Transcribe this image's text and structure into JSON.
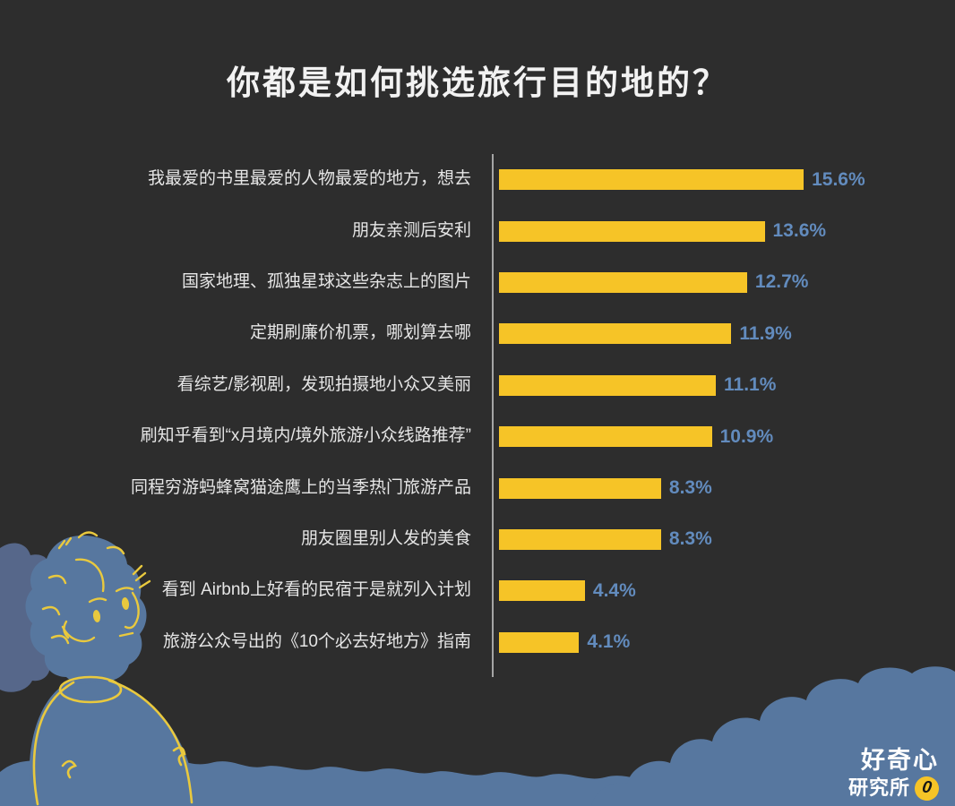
{
  "title": "你都是如何挑选旅行目的地的？",
  "chart_data": {
    "type": "bar",
    "orientation": "horizontal",
    "title": "你都是如何挑选旅行目的地的？",
    "categories": [
      "我最爱的书里最爱的人物最爱的地方，想去",
      "朋友亲测后安利",
      "国家地理、孤独星球这些杂志上的图片",
      "定期刷廉价机票，哪划算去哪",
      "看综艺/影视剧，发现拍摄地小众又美丽",
      "刷知乎看到“x月境内/境外旅游小众线路推荐”",
      "同程穷游蚂蜂窝猫途鹰上的当季热门旅游产品",
      "朋友圈里别人发的美食",
      "看到 Airbnb上好看的民宿于是就列入计划",
      "旅游公众号出的《10个必去好地方》指南"
    ],
    "values": [
      15.6,
      13.6,
      12.7,
      11.9,
      11.1,
      10.9,
      8.3,
      8.3,
      4.4,
      4.1
    ],
    "value_labels": [
      "15.6%",
      "13.6%",
      "12.7%",
      "11.9%",
      "11.1%",
      "10.9%",
      "8.3%",
      "8.3%",
      "4.4%",
      "4.1%"
    ],
    "xlim": [
      0,
      16.5
    ],
    "grid": false,
    "legend": false,
    "bar_color": "#f6c427",
    "value_label_color": "#628bbd",
    "category_label_color": "#e6e6e6",
    "axis_line_color": "#a5a5a5",
    "background_color": "#2d2d2d"
  },
  "branding": {
    "name_line1": "好奇心",
    "name_line2": "研究所",
    "badge_glyph": "0",
    "badge_color": "#f6c427"
  },
  "illustration": {
    "person": "person-looking-up",
    "clouds": "blue-clouds",
    "body_color": "#57779f",
    "back_cloud_color": "#56678a",
    "line_color": "#e9c93e"
  }
}
